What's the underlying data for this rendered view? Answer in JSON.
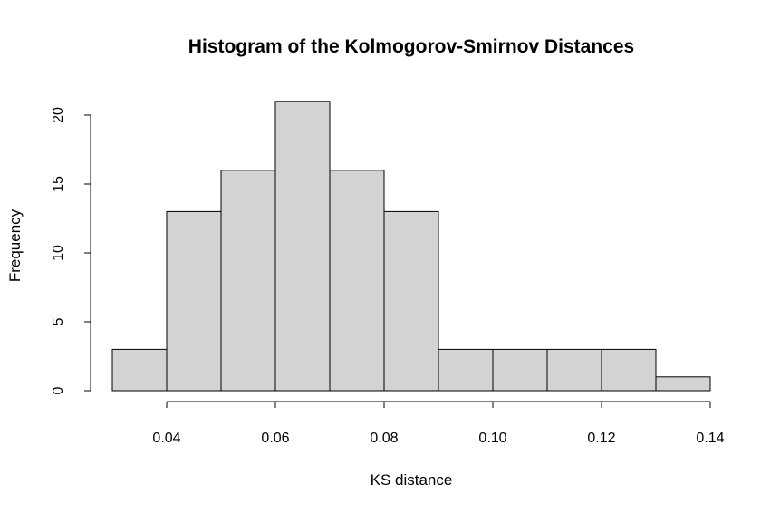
{
  "chart_data": {
    "type": "bar",
    "title": "Histogram of the Kolmogorov-Smirnov Distances",
    "xlabel": "KS distance",
    "ylabel": "Frequency",
    "bins": [
      {
        "from": 0.03,
        "to": 0.04,
        "count": 3
      },
      {
        "from": 0.04,
        "to": 0.05,
        "count": 13
      },
      {
        "from": 0.05,
        "to": 0.06,
        "count": 16
      },
      {
        "from": 0.06,
        "to": 0.07,
        "count": 21
      },
      {
        "from": 0.07,
        "to": 0.08,
        "count": 16
      },
      {
        "from": 0.08,
        "to": 0.09,
        "count": 13
      },
      {
        "from": 0.09,
        "to": 0.1,
        "count": 3
      },
      {
        "from": 0.1,
        "to": 0.11,
        "count": 3
      },
      {
        "from": 0.11,
        "to": 0.12,
        "count": 3
      },
      {
        "from": 0.12,
        "to": 0.13,
        "count": 3
      },
      {
        "from": 0.13,
        "to": 0.14,
        "count": 1
      }
    ],
    "xticks": [
      "0.04",
      "0.06",
      "0.08",
      "0.10",
      "0.12",
      "0.14"
    ],
    "yticks": [
      "0",
      "5",
      "10",
      "15",
      "20"
    ],
    "xlim": [
      0.03,
      0.14
    ],
    "ylim": [
      0,
      21
    ],
    "grid": false,
    "bar_color": "#d3d3d3",
    "edge_color": "#000000"
  }
}
